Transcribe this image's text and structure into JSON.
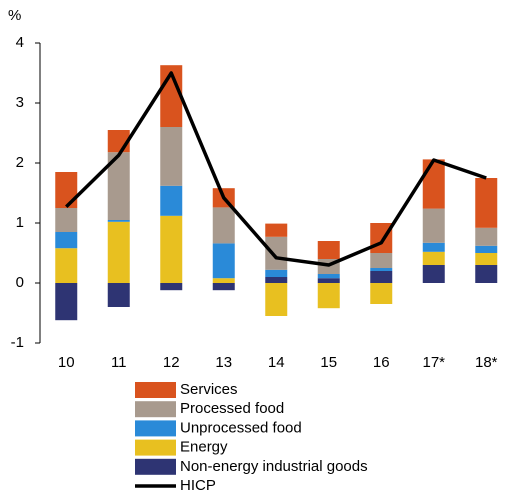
{
  "chart_data": {
    "type": "bar",
    "stacked": true,
    "y_label": "%",
    "categories": [
      "10",
      "11",
      "12",
      "13",
      "14",
      "15",
      "16",
      "17*",
      "18*"
    ],
    "ylim": [
      -1,
      4
    ],
    "yticks": [
      -1,
      0,
      1,
      2,
      3,
      4
    ],
    "series": [
      {
        "name": "Services",
        "type": "bar",
        "color": "#d9531e",
        "values": [
          0.6,
          0.37,
          1.03,
          0.32,
          0.22,
          0.3,
          0.5,
          0.82,
          0.83
        ]
      },
      {
        "name": "Processed food",
        "type": "bar",
        "color": "#a89a8e",
        "values": [
          0.4,
          1.13,
          0.98,
          0.6,
          0.55,
          0.25,
          0.25,
          0.57,
          0.3
        ]
      },
      {
        "name": "Unprocessed food",
        "type": "bar",
        "color": "#2a8ad8",
        "values": [
          0.27,
          0.03,
          0.5,
          0.58,
          0.12,
          0.07,
          0.05,
          0.15,
          0.12
        ]
      },
      {
        "name": "Energy",
        "type": "bar",
        "color": "#e8c020",
        "values": [
          0.58,
          1.02,
          1.12,
          0.08,
          -0.55,
          -0.42,
          -0.35,
          0.22,
          0.2
        ]
      },
      {
        "name": "Non-energy industrial goods",
        "type": "bar",
        "color": "#2e3473",
        "values": [
          -0.62,
          -0.4,
          -0.12,
          -0.12,
          0.1,
          0.08,
          0.2,
          0.3,
          0.3
        ]
      },
      {
        "name": "HICP",
        "type": "line",
        "color": "#000000",
        "values": [
          1.27,
          2.13,
          3.5,
          1.42,
          0.42,
          0.3,
          0.67,
          2.05,
          1.75
        ]
      }
    ]
  }
}
